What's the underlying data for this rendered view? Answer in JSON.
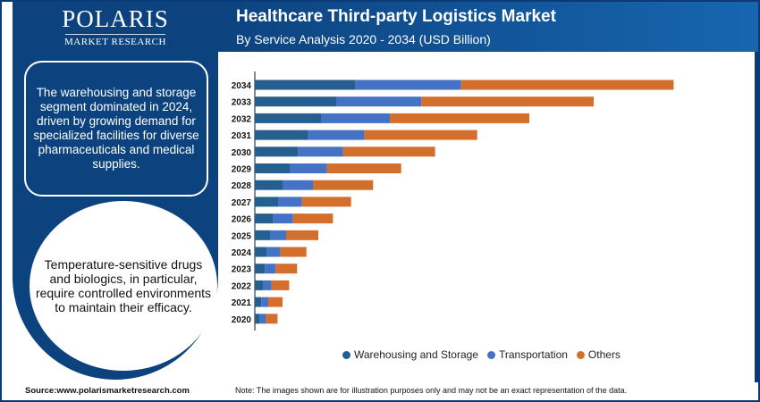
{
  "logo": {
    "name": "POLARIS",
    "tagline": "MARKET RESEARCH"
  },
  "panel": {
    "insight_1": "The warehousing and storage segment dominated in 2024, driven by growing demand for specialized facilities for diverse pharmaceuticals and medical supplies.",
    "insight_2": "Temperature-sensitive drugs and biologics, in particular, require controlled environments to maintain their efficacy."
  },
  "header": {
    "title": "Healthcare Third-party Logistics Market",
    "subtitle": "By Service Analysis 2020 - 2034 (USD Billion)"
  },
  "footer": {
    "source": "Source:www.polarismarketresearch.com",
    "note": "Note: The images shown are for illustration purposes only and may not be an exact representation of the data."
  },
  "chart_data": {
    "type": "bar",
    "orientation": "horizontal",
    "stacked": true,
    "title": "Healthcare Third-party Logistics Market",
    "subtitle": "By Service Analysis 2020 - 2034 (USD Billion)",
    "categories": [
      "2034",
      "2033",
      "2032",
      "2031",
      "2030",
      "2029",
      "2028",
      "2027",
      "2026",
      "2025",
      "2024",
      "2023",
      "2022",
      "2021",
      "2020"
    ],
    "series": [
      {
        "name": "Warehousing and Storage",
        "color": "#245f8f",
        "values": [
          112.7,
          91,
          74,
          59.7,
          48.3,
          39,
          31.7,
          26,
          20.7,
          17,
          13.7,
          11.3,
          9,
          7.3,
          5.7
        ]
      },
      {
        "name": "Transportation",
        "color": "#4472c4",
        "values": [
          118,
          95.3,
          77,
          62.7,
          50.3,
          41.7,
          33.3,
          26.7,
          22,
          18,
          14.7,
          12,
          9.7,
          7.7,
          6.7
        ]
      },
      {
        "name": "Others",
        "color": "#d46e2c",
        "values": [
          237.7,
          192.7,
          156,
          126.3,
          103,
          83,
          67.3,
          55,
          44.7,
          36,
          29.3,
          24,
          19.7,
          16,
          13
        ]
      }
    ],
    "grid": false,
    "legend": "bottom"
  }
}
